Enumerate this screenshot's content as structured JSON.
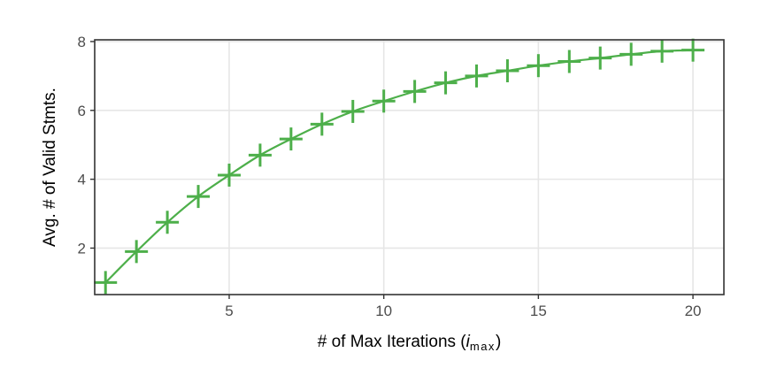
{
  "chart_data": {
    "type": "line",
    "xlabel": "# of Max Iterations (",
    "xlabel_var": "i",
    "xlabel_sub": "max",
    "xlabel_close": ")",
    "ylabel": "Avg. # of Valid Stmts.",
    "xlim": [
      0.65,
      21.0
    ],
    "ylim": [
      0.65,
      8.05
    ],
    "x_ticks": [
      5,
      10,
      15,
      20
    ],
    "y_ticks": [
      2,
      4,
      6,
      8
    ],
    "grid": true,
    "marker": "plus",
    "color": "#4daf4a",
    "series": [
      {
        "x": [
          1,
          2,
          3,
          4,
          5,
          6,
          7,
          8,
          9,
          10,
          11,
          12,
          13,
          14,
          15,
          16,
          17,
          18,
          19,
          20
        ],
        "values": [
          1.0,
          1.9,
          2.75,
          3.5,
          4.12,
          4.7,
          5.17,
          5.6,
          5.97,
          6.27,
          6.55,
          6.8,
          7.0,
          7.15,
          7.3,
          7.42,
          7.52,
          7.63,
          7.72,
          7.75
        ]
      }
    ]
  }
}
